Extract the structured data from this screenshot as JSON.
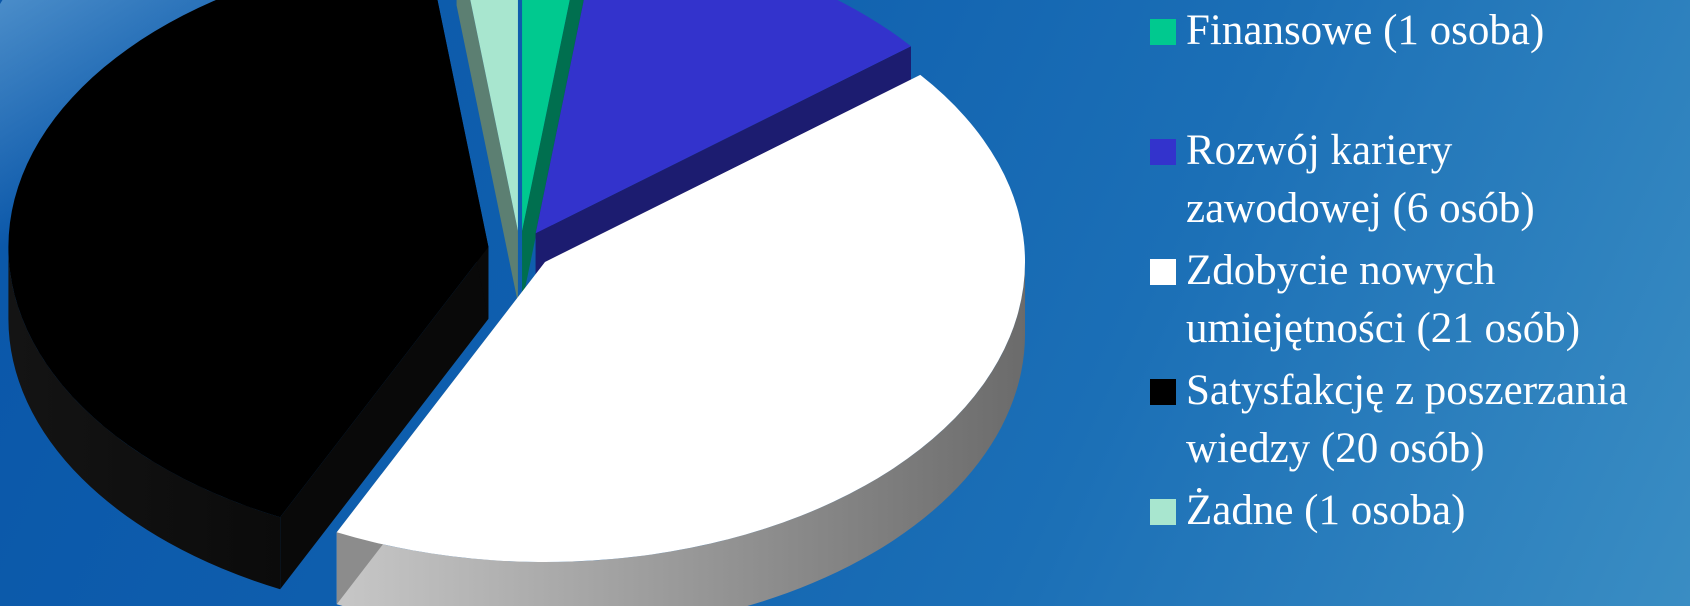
{
  "chart_data": {
    "type": "pie",
    "three_d": true,
    "exploded": true,
    "start_angle_deg": -90,
    "categories": [
      "Finansowe (1 osoba)",
      "Rozwój kariery zawodowej (6 osób)",
      "Zdobycie nowych umiejętności (21 osób)",
      "Satysfakcję z poszerzania wiedzy (20 osób)",
      "Żadne (1 osoba)"
    ],
    "values": [
      1,
      6,
      21,
      20,
      1
    ],
    "colors": [
      "#00c98f",
      "#3333cc",
      "#ffffff",
      "#000000",
      "#a8e6cf"
    ],
    "legend_position": "right"
  },
  "legend": {
    "items": [
      {
        "line1": "Finansowe (1 osoba)",
        "line2": "",
        "color": "#00c98f"
      },
      {
        "line1": "Rozwój kariery",
        "line2": "zawodowej (6 osób)",
        "color": "#3333cc"
      },
      {
        "line1": "Zdobycie nowych",
        "line2": "umiejętności (21 osób)",
        "color": "#ffffff"
      },
      {
        "line1": "Satysfakcję z poszerzania",
        "line2": "wiedzy (20 osób)",
        "color": "#000000"
      },
      {
        "line1": "Żadne (1 osoba)",
        "line2": "",
        "color": "#a8e6cf"
      }
    ]
  }
}
